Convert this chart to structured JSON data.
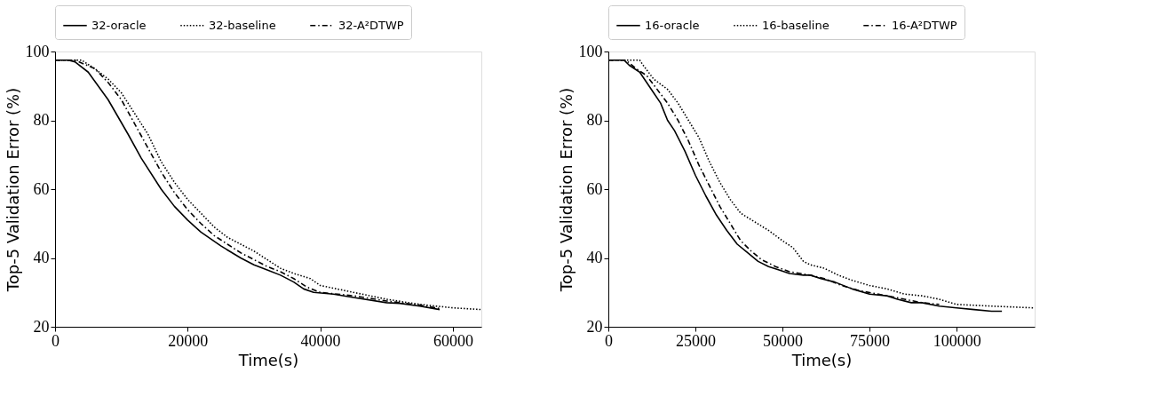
{
  "chart_data": [
    {
      "type": "line",
      "xlabel": "Time(s)",
      "ylabel": "Top-5 Validation Error (%)",
      "xlim": [
        0,
        64300
      ],
      "ylim": [
        20,
        100
      ],
      "xticks": [
        0,
        20000,
        40000,
        60000
      ],
      "yticks": [
        20,
        40,
        60,
        80,
        100
      ],
      "grid": false,
      "legend": "top",
      "marker": "none",
      "series": [
        {
          "name": "32-oracle",
          "color": "#000000",
          "line_style": "solid",
          "x": [
            0,
            2000,
            3000,
            5000,
            8000,
            11000,
            13000,
            16000,
            18000,
            20000,
            22000,
            25000,
            28000,
            30000,
            32000,
            34000,
            36000,
            37500,
            39000,
            42000,
            45000,
            50000,
            52000,
            55000,
            58000
          ],
          "values": [
            97.5,
            97.5,
            97,
            94,
            86,
            76,
            69,
            60,
            55,
            51,
            47.5,
            43.5,
            40,
            38,
            36.5,
            35,
            33,
            31,
            30,
            29.5,
            28.5,
            27,
            26.8,
            26,
            25
          ]
        },
        {
          "name": "32-baseline",
          "color": "#000000",
          "line_style": "dotted",
          "x": [
            0,
            4000,
            6000,
            8000,
            10000,
            12000,
            14000,
            16000,
            18000,
            20000,
            22000,
            24000,
            26000,
            28000,
            30000,
            32000,
            34000,
            36000,
            38500,
            40000,
            45000,
            50000,
            55000,
            60000,
            64300
          ],
          "values": [
            97.5,
            97.5,
            95,
            92,
            88,
            82,
            76,
            68,
            62,
            57,
            53,
            49,
            46,
            44,
            42,
            39.5,
            37,
            35.5,
            34,
            32,
            30,
            28,
            26.5,
            25.5,
            25
          ]
        },
        {
          "name": "32-A²DTWP",
          "color": "#000000",
          "line_style": "dashdot",
          "x": [
            0,
            3000,
            6000,
            8000,
            10000,
            12000,
            14000,
            16000,
            18000,
            20000,
            22000,
            24000,
            26000,
            28000,
            30000,
            32000,
            34000,
            36000,
            38000,
            40000,
            45000,
            50000,
            55000,
            58000
          ],
          "values": [
            97.5,
            97.5,
            95,
            91,
            86,
            79,
            72,
            65,
            59,
            54,
            50,
            46.5,
            44,
            41.5,
            39.5,
            37.5,
            36,
            34,
            31.5,
            30,
            29,
            27.5,
            26.3,
            25.3
          ]
        }
      ]
    },
    {
      "type": "line",
      "xlabel": "Time(s)",
      "ylabel": "Top-5 Validation Error (%)",
      "xlim": [
        0,
        122400
      ],
      "ylim": [
        20,
        100
      ],
      "xticks": [
        0,
        25000,
        50000,
        75000,
        100000
      ],
      "yticks": [
        20,
        40,
        60,
        80,
        100
      ],
      "grid": false,
      "legend": "top",
      "marker": "none",
      "series": [
        {
          "name": "16-oracle",
          "color": "#000000",
          "line_style": "solid",
          "x": [
            0,
            4500,
            6000,
            9000,
            13000,
            15000,
            17000,
            19000,
            22000,
            25000,
            28000,
            31000,
            34000,
            37000,
            40000,
            43000,
            46000,
            49000,
            52000,
            56000,
            58000,
            61000,
            65000,
            70000,
            75000,
            80000,
            83000,
            87000,
            90000,
            95000,
            100000,
            105000,
            110000,
            113000
          ],
          "values": [
            97.5,
            97.5,
            96,
            94,
            88,
            85,
            80,
            77,
            71,
            64,
            58,
            52.5,
            48,
            44,
            41.5,
            39,
            37.5,
            36.5,
            35.5,
            35,
            35,
            34,
            33,
            31,
            29.5,
            29,
            28,
            27,
            27,
            26,
            25.5,
            25,
            24.5,
            24.5
          ]
        },
        {
          "name": "16-baseline",
          "color": "#000000",
          "line_style": "dotted",
          "x": [
            0,
            9000,
            10000,
            13000,
            17000,
            20000,
            23000,
            26000,
            29000,
            32000,
            35000,
            38000,
            42000,
            46000,
            50000,
            53000,
            56000,
            58000,
            62000,
            66000,
            70000,
            75000,
            80000,
            85000,
            90000,
            95000,
            100000,
            110000,
            122000
          ],
          "values": [
            97.5,
            97.5,
            96,
            92,
            89,
            85,
            80,
            75,
            68,
            62,
            57,
            53,
            50.5,
            48,
            45,
            43,
            39,
            38,
            37,
            35,
            33.5,
            32,
            31,
            29.5,
            29,
            28,
            26.5,
            26,
            25.5
          ]
        },
        {
          "name": "16-A²DTWP",
          "color": "#000000",
          "line_style": "dashdot",
          "x": [
            0,
            5000,
            8000,
            11000,
            14000,
            17000,
            20000,
            23000,
            26000,
            29000,
            32000,
            35000,
            38000,
            41000,
            44000,
            48000,
            52000,
            58000,
            62000,
            67000,
            72000,
            80000,
            85000,
            90000,
            95000
          ],
          "values": [
            97.5,
            97.5,
            95,
            93,
            89,
            85,
            80,
            74,
            67,
            61,
            55,
            50,
            45,
            42,
            39.5,
            37.5,
            36,
            35,
            34,
            32,
            30.5,
            29,
            28,
            27,
            26.5
          ]
        }
      ]
    }
  ]
}
